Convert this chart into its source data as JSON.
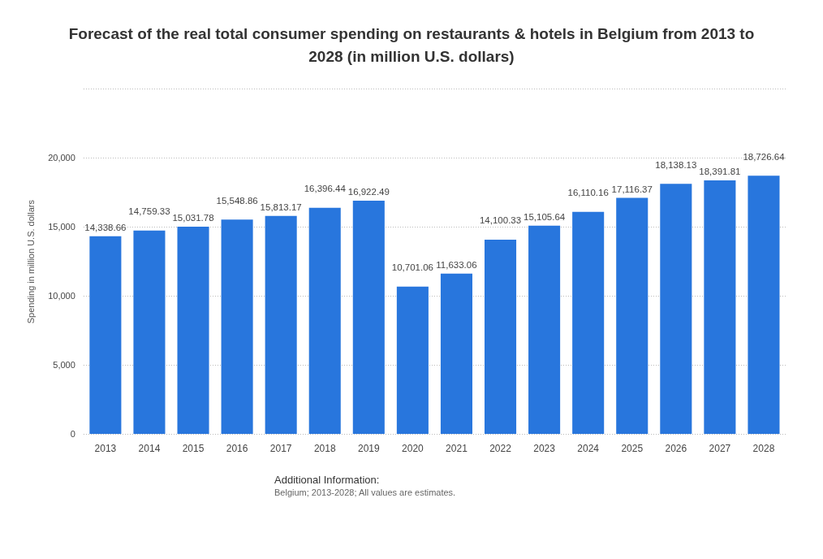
{
  "chart_data": {
    "type": "bar",
    "title": "Forecast of the real total consumer spending on restaurants & hotels in Belgium from 2013 to 2028 (in million U.S. dollars)",
    "ylabel": "Spending in million U.S. dollars",
    "categories": [
      "2013",
      "2014",
      "2015",
      "2016",
      "2017",
      "2018",
      "2019",
      "2020",
      "2021",
      "2022",
      "2023",
      "2024",
      "2025",
      "2026",
      "2027",
      "2028"
    ],
    "values": [
      14338.66,
      14759.33,
      15031.78,
      15548.86,
      15813.17,
      16396.44,
      16922.49,
      10701.06,
      11633.06,
      14100.33,
      15105.64,
      16110.16,
      17116.37,
      18138.13,
      18391.81,
      18726.64
    ],
    "value_labels": [
      "14,338.66",
      "14,759.33",
      "15,031.78",
      "15,548.86",
      "15,813.17",
      "16,396.44",
      "16,922.49",
      "10,701.06",
      "11,633.06",
      "14,100.33",
      "15,105.64",
      "16,110.16",
      "17,116.37",
      "18,138.13",
      "18,391.81",
      "18,726.64"
    ],
    "color": "#2876dd",
    "ylim": [
      0,
      25000
    ],
    "yticks": [
      0,
      {
        "value": 5000,
        "label": "5,000"
      },
      {
        "value": 10000,
        "label": "10,000"
      },
      {
        "value": 15000,
        "label": "15,000"
      },
      {
        "value": 20000,
        "label": "20,000"
      },
      {
        "value": 25000,
        "label": null
      }
    ],
    "grid": "y",
    "line_style": "dotted",
    "annotations": [
      "Additional Information:",
      "Belgium; 2013-2028; All values are estimates."
    ]
  }
}
